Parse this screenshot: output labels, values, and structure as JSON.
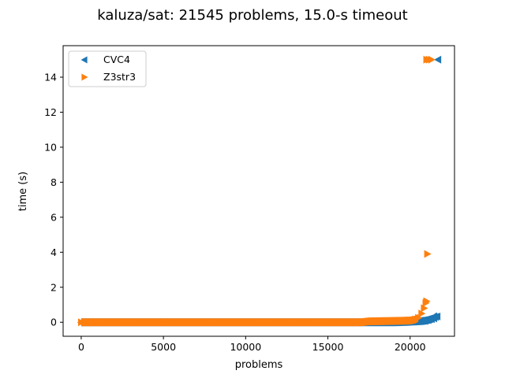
{
  "chart_data": {
    "type": "scatter",
    "title": "kaluza/sat: 21545 problems, 15.0-s timeout",
    "xlabel": "problems",
    "ylabel": "time (s)",
    "xlim": [
      -1100,
      22700
    ],
    "ylim": [
      -0.8,
      15.8
    ],
    "xticks": [
      0,
      5000,
      10000,
      15000,
      20000
    ],
    "yticks": [
      0,
      2,
      4,
      6,
      8,
      10,
      12,
      14
    ],
    "grid": false,
    "legend_position": "top-left",
    "series": [
      {
        "name": "CVC4",
        "color": "#1f77b4",
        "marker": "triangle-left",
        "points": [
          [
            0,
            0
          ],
          [
            1000,
            0
          ],
          [
            3000,
            0
          ],
          [
            5000,
            0
          ],
          [
            8000,
            0
          ],
          [
            11000,
            0
          ],
          [
            14000,
            0
          ],
          [
            17000,
            0
          ],
          [
            19000,
            0
          ],
          [
            19800,
            0.02
          ],
          [
            20200,
            0.04
          ],
          [
            20600,
            0.06
          ],
          [
            20900,
            0.08
          ],
          [
            21100,
            0.12
          ],
          [
            21300,
            0.18
          ],
          [
            21450,
            0.22
          ],
          [
            21545,
            0.3
          ],
          [
            21650,
            0.33
          ],
          [
            21700,
            15.0
          ]
        ]
      },
      {
        "name": "Z3str3",
        "color": "#ff7f0e",
        "marker": "triangle-right",
        "points": [
          [
            0,
            0
          ],
          [
            1000,
            0
          ],
          [
            3000,
            0
          ],
          [
            5000,
            0
          ],
          [
            7000,
            0
          ],
          [
            9000,
            0
          ],
          [
            11000,
            0
          ],
          [
            13000,
            0
          ],
          [
            15000,
            0
          ],
          [
            17000,
            0
          ],
          [
            17500,
            0.05
          ],
          [
            18500,
            0.07
          ],
          [
            19500,
            0.08
          ],
          [
            20000,
            0.1
          ],
          [
            20300,
            0.15
          ],
          [
            20500,
            0.25
          ],
          [
            20700,
            0.5
          ],
          [
            20850,
            0.8
          ],
          [
            20950,
            1.1
          ],
          [
            21000,
            1.2
          ],
          [
            21050,
            3.9
          ],
          [
            21000,
            15.0
          ],
          [
            21150,
            15.0
          ],
          [
            21300,
            15.0
          ]
        ]
      }
    ]
  }
}
